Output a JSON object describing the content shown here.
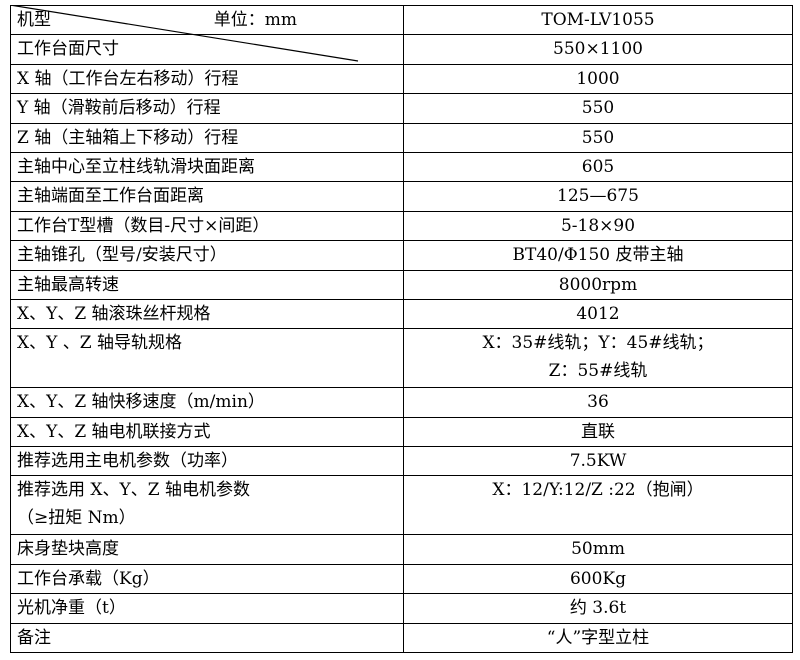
{
  "header": {
    "label": "机型",
    "unit": "单位：mm",
    "model": "TOM-LV1055"
  },
  "rows": [
    {
      "name": "工作台面尺寸",
      "value": "550×1100"
    },
    {
      "name": "X 轴（工作台左右移动）行程",
      "value": "1000"
    },
    {
      "name": "Y 轴（滑鞍前后移动）行程",
      "value": "550"
    },
    {
      "name": "Z 轴（主轴箱上下移动）行程",
      "value": "550"
    },
    {
      "name": "主轴中心至立柱线轨滑块面距离",
      "value": "605"
    },
    {
      "name": "主轴端面至工作台面距离",
      "value": "125—675"
    },
    {
      "name": "工作台T型槽（数目-尺寸×间距）",
      "value": "5-18×90"
    },
    {
      "name": "主轴锥孔（型号/安装尺寸）",
      "value": "BT40/Φ150 皮带主轴"
    },
    {
      "name": "主轴最高转速",
      "value": "8000rpm"
    },
    {
      "name": "X、Y、Z 轴滚珠丝杆规格",
      "value": "4012"
    },
    {
      "name": "X、Y 、Z 轴导轨规格",
      "value": "X：35#线轨；Y：45#线轨；",
      "value2": "Z：55#线轨"
    },
    {
      "name": "X、Y、Z 轴快移速度（m/min）",
      "value": "36"
    },
    {
      "name": "X、Y、Z 轴电机联接方式",
      "value": "直联"
    },
    {
      "name": "推荐选用主电机参数（功率）",
      "value": "7.5KW"
    },
    {
      "name": "推荐选用 X、Y、Z    轴电机参数",
      "name2": "（≥扭矩 Nm）",
      "value": "X：12/Y:12/Z :22（抱闸）"
    },
    {
      "name": "床身垫块高度",
      "value": "50mm"
    },
    {
      "name": "工作台承载（Kg）",
      "value": "600Kg"
    },
    {
      "name": "光机净重（t）",
      "value": "约 3.6t"
    },
    {
      "name": "备注",
      "value": "“人”字型立柱"
    }
  ]
}
